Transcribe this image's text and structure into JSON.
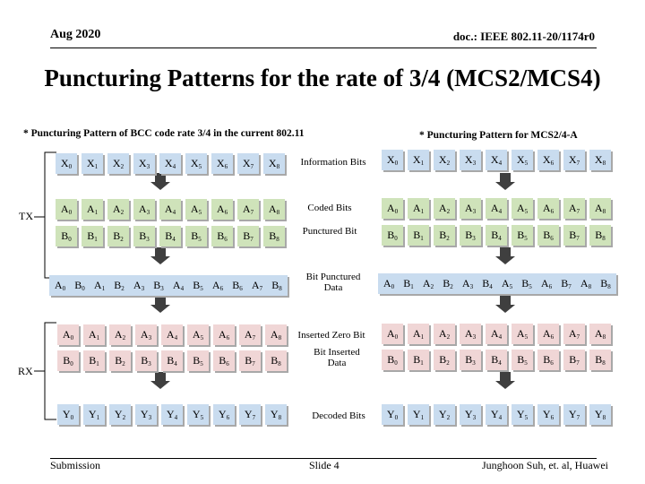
{
  "header": {
    "left": "Aug 2020",
    "right": "doc.: IEEE 802.11-20/1174r0"
  },
  "title": "Puncturing Patterns for the rate of 3/4 (MCS2/MCS4)",
  "left_caption": "* Puncturing Pattern of BCC code rate 3/4 in the current 802.11",
  "right_caption": "* Puncturing Pattern for MCS2/4-A",
  "side_labels": {
    "tx": "TX",
    "rx": "RX"
  },
  "row_labels": {
    "information": "Information Bits",
    "coded": "Coded Bits",
    "punctured": "Punctured Bit",
    "bit_punctured_1": "Bit Punctured",
    "bit_punctured_2": "Data",
    "inserted_zero": "Inserted Zero Bit",
    "bit_inserted_1": "Bit Inserted",
    "bit_inserted_2": "Data",
    "decoded": "Decoded Bits"
  },
  "footer": {
    "left": "Submission",
    "center": "Slide 4",
    "right": "Junghoon Suh, et. al, Huawei"
  },
  "left": {
    "info": [
      [
        "X",
        "0"
      ],
      [
        "X",
        "1"
      ],
      [
        "X",
        "2"
      ],
      [
        "X",
        "3"
      ],
      [
        "X",
        "4"
      ],
      [
        "X",
        "5"
      ],
      [
        "X",
        "6"
      ],
      [
        "X",
        "7"
      ],
      [
        "X",
        "8"
      ]
    ],
    "coded_a": [
      [
        "A",
        "0"
      ],
      [
        "A",
        "1"
      ],
      [
        "A",
        "2"
      ],
      [
        "A",
        "3"
      ],
      [
        "A",
        "4"
      ],
      [
        "A",
        "5"
      ],
      [
        "A",
        "6"
      ],
      [
        "A",
        "7"
      ],
      [
        "A",
        "8"
      ]
    ],
    "coded_b": [
      [
        "B",
        "0"
      ],
      [
        "B",
        "1"
      ],
      [
        "B",
        "2"
      ],
      [
        "B",
        "3"
      ],
      [
        "B",
        "4"
      ],
      [
        "B",
        "5"
      ],
      [
        "B",
        "6"
      ],
      [
        "B",
        "7"
      ],
      [
        "B",
        "8"
      ]
    ],
    "punctured_seq": [
      [
        "A",
        "0"
      ],
      [
        "B",
        "0"
      ],
      [
        "A",
        "1"
      ],
      [
        "B",
        "2"
      ],
      [
        "A",
        "3"
      ],
      [
        "B",
        "3"
      ],
      [
        "A",
        "4"
      ],
      [
        "B",
        "5"
      ],
      [
        "A",
        "6"
      ],
      [
        "B",
        "6"
      ],
      [
        "A",
        "7"
      ],
      [
        "B",
        "8"
      ]
    ],
    "rx_a": [
      [
        "A",
        "0"
      ],
      [
        "A",
        "1"
      ],
      [
        "A",
        "2"
      ],
      [
        "A",
        "3"
      ],
      [
        "A",
        "4"
      ],
      [
        "A",
        "5"
      ],
      [
        "A",
        "6"
      ],
      [
        "A",
        "7"
      ],
      [
        "A",
        "8"
      ]
    ],
    "rx_b": [
      [
        "B",
        "0"
      ],
      [
        "B",
        "1"
      ],
      [
        "B",
        "2"
      ],
      [
        "B",
        "3"
      ],
      [
        "B",
        "4"
      ],
      [
        "B",
        "5"
      ],
      [
        "B",
        "6"
      ],
      [
        "B",
        "7"
      ],
      [
        "B",
        "8"
      ]
    ],
    "decoded": [
      [
        "Y",
        "0"
      ],
      [
        "Y",
        "1"
      ],
      [
        "Y",
        "2"
      ],
      [
        "Y",
        "3"
      ],
      [
        "Y",
        "4"
      ],
      [
        "Y",
        "5"
      ],
      [
        "Y",
        "6"
      ],
      [
        "Y",
        "7"
      ],
      [
        "Y",
        "8"
      ]
    ]
  },
  "right": {
    "info": [
      [
        "X",
        "0"
      ],
      [
        "X",
        "1"
      ],
      [
        "X",
        "2"
      ],
      [
        "X",
        "3"
      ],
      [
        "X",
        "4"
      ],
      [
        "X",
        "5"
      ],
      [
        "X",
        "6"
      ],
      [
        "X",
        "7"
      ],
      [
        "X",
        "8"
      ]
    ],
    "coded_a": [
      [
        "A",
        "0"
      ],
      [
        "A",
        "1"
      ],
      [
        "A",
        "2"
      ],
      [
        "A",
        "3"
      ],
      [
        "A",
        "4"
      ],
      [
        "A",
        "5"
      ],
      [
        "A",
        "6"
      ],
      [
        "A",
        "7"
      ],
      [
        "A",
        "8"
      ]
    ],
    "coded_b": [
      [
        "B",
        "0"
      ],
      [
        "B",
        "1"
      ],
      [
        "B",
        "2"
      ],
      [
        "B",
        "3"
      ],
      [
        "B",
        "4"
      ],
      [
        "B",
        "5"
      ],
      [
        "B",
        "6"
      ],
      [
        "B",
        "7"
      ],
      [
        "B",
        "8"
      ]
    ],
    "punctured_seq": [
      [
        "A",
        "0"
      ],
      [
        "B",
        "1"
      ],
      [
        "A",
        "2"
      ],
      [
        "B",
        "2"
      ],
      [
        "A",
        "3"
      ],
      [
        "B",
        "4"
      ],
      [
        "A",
        "5"
      ],
      [
        "B",
        "5"
      ],
      [
        "A",
        "6"
      ],
      [
        "B",
        "7"
      ],
      [
        "A",
        "8"
      ],
      [
        "B",
        "8"
      ]
    ],
    "rx_a": [
      [
        "A",
        "0"
      ],
      [
        "A",
        "1"
      ],
      [
        "A",
        "2"
      ],
      [
        "A",
        "3"
      ],
      [
        "A",
        "4"
      ],
      [
        "A",
        "5"
      ],
      [
        "A",
        "6"
      ],
      [
        "A",
        "7"
      ],
      [
        "A",
        "8"
      ]
    ],
    "rx_b": [
      [
        "B",
        "0"
      ],
      [
        "B",
        "1"
      ],
      [
        "B",
        "2"
      ],
      [
        "B",
        "3"
      ],
      [
        "B",
        "4"
      ],
      [
        "B",
        "5"
      ],
      [
        "B",
        "6"
      ],
      [
        "B",
        "7"
      ],
      [
        "B",
        "8"
      ]
    ],
    "decoded": [
      [
        "Y",
        "0"
      ],
      [
        "Y",
        "1"
      ],
      [
        "Y",
        "2"
      ],
      [
        "Y",
        "3"
      ],
      [
        "Y",
        "4"
      ],
      [
        "Y",
        "5"
      ],
      [
        "Y",
        "6"
      ],
      [
        "Y",
        "7"
      ],
      [
        "Y",
        "8"
      ]
    ]
  },
  "colors": {
    "info_fill": "#c9dcef",
    "coded_fill": "#cfe3ba",
    "rx_fill": "#f0d6d6",
    "arrow_fill": "#3f3f3f"
  }
}
